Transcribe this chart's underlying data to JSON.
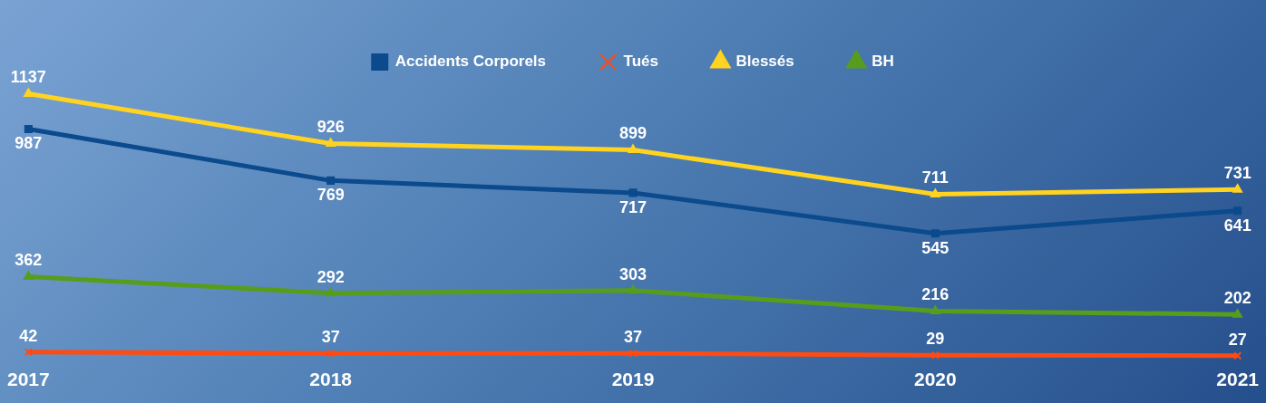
{
  "chart_data": {
    "type": "line",
    "categories": [
      "2017",
      "2018",
      "2019",
      "2020",
      "2021"
    ],
    "series": [
      {
        "name": "Accidents Corporels",
        "color": "#0b4a8c",
        "marker": "square",
        "values": [
          987,
          769,
          717,
          545,
          641
        ]
      },
      {
        "name": "Tués",
        "color": "#ff4a12",
        "marker": "cross",
        "values": [
          42,
          37,
          37,
          29,
          27
        ]
      },
      {
        "name": "Blessés",
        "color": "#ffd320",
        "marker": "triangle",
        "values": [
          1137,
          926,
          899,
          711,
          731
        ]
      },
      {
        "name": "BH",
        "color": "#579d1c",
        "marker": "triangle",
        "values": [
          362,
          292,
          303,
          216,
          202
        ]
      }
    ],
    "data_labels": true,
    "legend": "top",
    "grid": false,
    "line_style": "solid"
  }
}
